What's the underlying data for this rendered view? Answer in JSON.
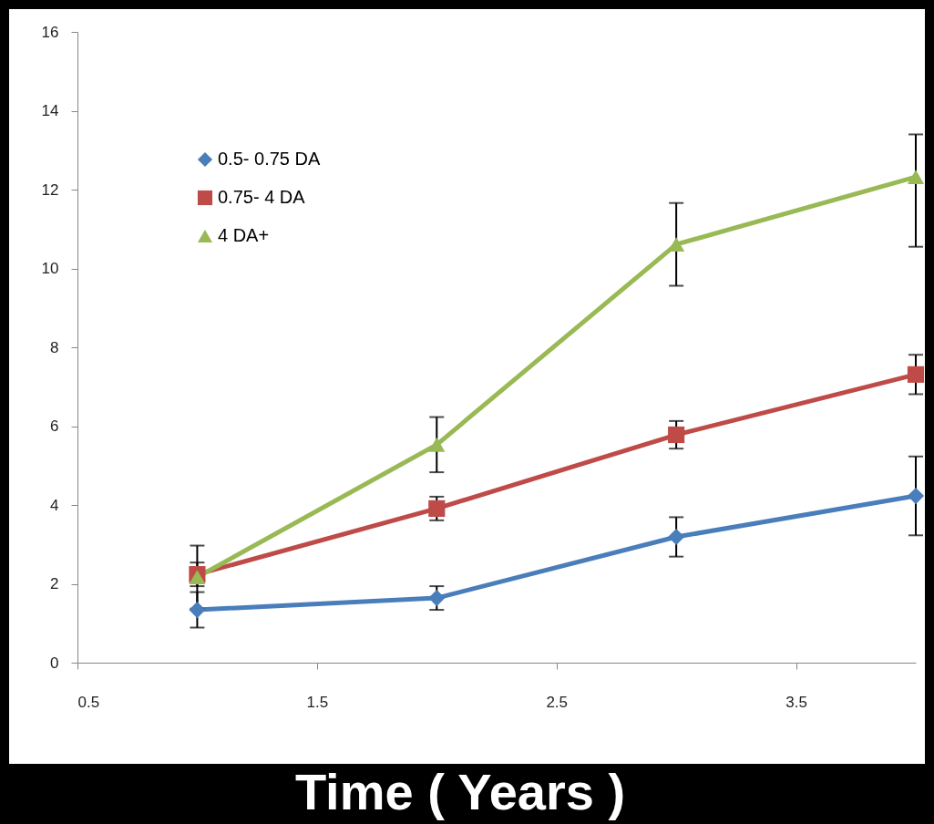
{
  "chart_data": {
    "type": "line",
    "xlabel": "Time ( Years )",
    "x": [
      1,
      2,
      3,
      4
    ],
    "xlim": [
      0.5,
      4
    ],
    "xticks": [
      0.5,
      1.5,
      2.5,
      3.5
    ],
    "ylim": [
      0,
      16
    ],
    "yticks": [
      0,
      2,
      4,
      6,
      8,
      10,
      12,
      14,
      16
    ],
    "grid": false,
    "legend": "top left",
    "series": [
      {
        "name": "0.5- 0.75 DA",
        "color": "#4a7ebb",
        "marker": "diamond",
        "values": [
          1.34,
          1.64,
          3.19,
          4.23
        ],
        "errors": [
          0.45,
          0.3,
          0.5,
          1.0
        ]
      },
      {
        "name": "0.75- 4 DA",
        "color": "#be4b48",
        "marker": "square",
        "values": [
          2.24,
          3.91,
          5.78,
          7.31
        ],
        "errors": [
          0.3,
          0.3,
          0.35,
          0.5
        ]
      },
      {
        "name": "4 DA+",
        "color": "#98b954",
        "marker": "triangle",
        "values": [
          2.17,
          5.53,
          10.61,
          12.32
        ],
        "errors": [
          0.8,
          0.7,
          1.05,
          [
            10.55,
            13.4
          ]
        ]
      }
    ]
  }
}
